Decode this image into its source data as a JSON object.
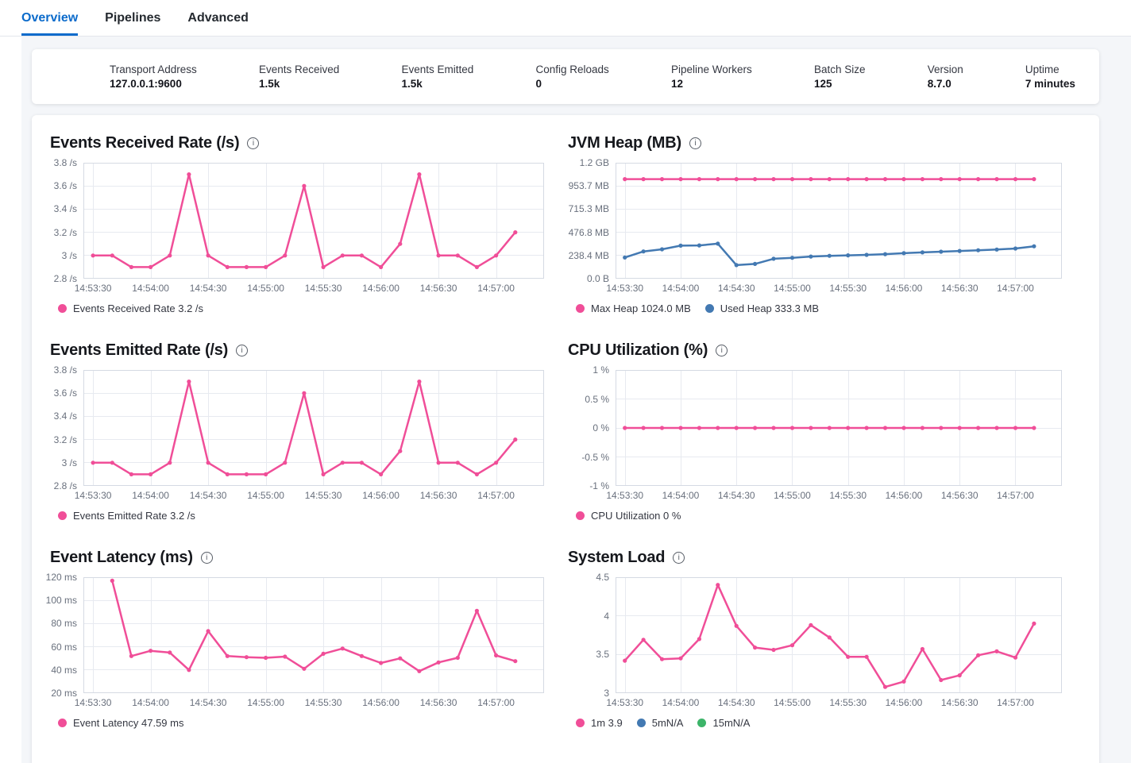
{
  "tabs": [
    {
      "label": "Overview",
      "active": true
    },
    {
      "label": "Pipelines",
      "active": false
    },
    {
      "label": "Advanced",
      "active": false
    }
  ],
  "stats": [
    {
      "label": "Transport Address",
      "value": "127.0.0.1:9600"
    },
    {
      "label": "Events Received",
      "value": "1.5k"
    },
    {
      "label": "Events Emitted",
      "value": "1.5k"
    },
    {
      "label": "Config Reloads",
      "value": "0"
    },
    {
      "label": "Pipeline Workers",
      "value": "12"
    },
    {
      "label": "Batch Size",
      "value": "125"
    },
    {
      "label": "Version",
      "value": "8.7.0"
    },
    {
      "label": "Uptime",
      "value": "7 minutes"
    }
  ],
  "colors": {
    "pink": "#f04e98",
    "blue": "#4379b2",
    "green": "#3cb469",
    "tab_accent": "#0b6bcb"
  },
  "icons": {
    "info": "i"
  },
  "chart_data": [
    {
      "type": "line",
      "title": "Events Received Rate (/s)",
      "ylim": [
        2.8,
        3.8
      ],
      "y_ticks": [
        "3.8 /s",
        "3.6 /s",
        "3.4 /s",
        "3.2 /s",
        "3 /s",
        "2.8 /s"
      ],
      "x_domain_seconds": 240,
      "x_ticks": [
        {
          "t": 5,
          "label": "14:53:30"
        },
        {
          "t": 35,
          "label": "14:54:00"
        },
        {
          "t": 65,
          "label": "14:54:30"
        },
        {
          "t": 95,
          "label": "14:55:00"
        },
        {
          "t": 125,
          "label": "14:55:30"
        },
        {
          "t": 155,
          "label": "14:56:00"
        },
        {
          "t": 185,
          "label": "14:56:30"
        },
        {
          "t": 215,
          "label": "14:57:00"
        }
      ],
      "series": [
        {
          "name": "Events Received Rate",
          "color": "pink",
          "start_t": 5,
          "step_t": 10,
          "values": [
            3,
            3,
            2.9,
            2.9,
            3,
            3.7,
            3,
            2.9,
            2.9,
            2.9,
            3,
            3.6,
            2.9,
            3,
            3,
            2.9,
            3.1,
            3.7,
            3,
            3,
            2.9,
            3,
            3.2
          ]
        }
      ],
      "legend": [
        {
          "label": "Events Received Rate 3.2 /s",
          "color": "pink"
        }
      ]
    },
    {
      "type": "line",
      "title": "JVM Heap (MB)",
      "ylim": [
        0,
        1192.1
      ],
      "y_ticks": [
        "1.2 GB",
        "953.7 MB",
        "715.3 MB",
        "476.8 MB",
        "238.4 MB",
        "0.0 B"
      ],
      "x_domain_seconds": 240,
      "x_ticks": [
        {
          "t": 5,
          "label": "14:53:30"
        },
        {
          "t": 35,
          "label": "14:54:00"
        },
        {
          "t": 65,
          "label": "14:54:30"
        },
        {
          "t": 95,
          "label": "14:55:00"
        },
        {
          "t": 125,
          "label": "14:55:30"
        },
        {
          "t": 155,
          "label": "14:56:00"
        },
        {
          "t": 185,
          "label": "14:56:30"
        },
        {
          "t": 215,
          "label": "14:57:00"
        }
      ],
      "series": [
        {
          "name": "Max Heap",
          "color": "pink",
          "start_t": 5,
          "step_t": 10,
          "values": [
            1024,
            1024,
            1024,
            1024,
            1024,
            1024,
            1024,
            1024,
            1024,
            1024,
            1024,
            1024,
            1024,
            1024,
            1024,
            1024,
            1024,
            1024,
            1024,
            1024,
            1024,
            1024,
            1024
          ]
        },
        {
          "name": "Used Heap",
          "color": "blue",
          "start_t": 5,
          "step_t": 10,
          "values": [
            218,
            280,
            302,
            340,
            342,
            360,
            140,
            152,
            205,
            215,
            228,
            235,
            240,
            245,
            252,
            262,
            270,
            278,
            285,
            292,
            300,
            310,
            333.3
          ]
        }
      ],
      "legend": [
        {
          "label": "Max Heap 1024.0 MB",
          "color": "pink"
        },
        {
          "label": "Used Heap 333.3 MB",
          "color": "blue"
        }
      ]
    },
    {
      "type": "line",
      "title": "Events Emitted Rate (/s)",
      "ylim": [
        2.8,
        3.8
      ],
      "y_ticks": [
        "3.8 /s",
        "3.6 /s",
        "3.4 /s",
        "3.2 /s",
        "3 /s",
        "2.8 /s"
      ],
      "x_domain_seconds": 240,
      "x_ticks": [
        {
          "t": 5,
          "label": "14:53:30"
        },
        {
          "t": 35,
          "label": "14:54:00"
        },
        {
          "t": 65,
          "label": "14:54:30"
        },
        {
          "t": 95,
          "label": "14:55:00"
        },
        {
          "t": 125,
          "label": "14:55:30"
        },
        {
          "t": 155,
          "label": "14:56:00"
        },
        {
          "t": 185,
          "label": "14:56:30"
        },
        {
          "t": 215,
          "label": "14:57:00"
        }
      ],
      "series": [
        {
          "name": "Events Emitted Rate",
          "color": "pink",
          "start_t": 5,
          "step_t": 10,
          "values": [
            3,
            3,
            2.9,
            2.9,
            3,
            3.7,
            3,
            2.9,
            2.9,
            2.9,
            3,
            3.6,
            2.9,
            3,
            3,
            2.9,
            3.1,
            3.7,
            3,
            3,
            2.9,
            3,
            3.2
          ]
        }
      ],
      "legend": [
        {
          "label": "Events Emitted Rate 3.2 /s",
          "color": "pink"
        }
      ]
    },
    {
      "type": "line",
      "title": "CPU Utilization (%)",
      "ylim": [
        -1,
        1
      ],
      "y_ticks": [
        "1 %",
        "0.5 %",
        "0 %",
        "-0.5 %",
        "-1 %"
      ],
      "x_domain_seconds": 240,
      "x_ticks": [
        {
          "t": 5,
          "label": "14:53:30"
        },
        {
          "t": 35,
          "label": "14:54:00"
        },
        {
          "t": 65,
          "label": "14:54:30"
        },
        {
          "t": 95,
          "label": "14:55:00"
        },
        {
          "t": 125,
          "label": "14:55:30"
        },
        {
          "t": 155,
          "label": "14:56:00"
        },
        {
          "t": 185,
          "label": "14:56:30"
        },
        {
          "t": 215,
          "label": "14:57:00"
        }
      ],
      "series": [
        {
          "name": "CPU Utilization",
          "color": "pink",
          "start_t": 5,
          "step_t": 10,
          "values": [
            0,
            0,
            0,
            0,
            0,
            0,
            0,
            0,
            0,
            0,
            0,
            0,
            0,
            0,
            0,
            0,
            0,
            0,
            0,
            0,
            0,
            0,
            0
          ]
        }
      ],
      "legend": [
        {
          "label": "CPU Utilization 0 %",
          "color": "pink"
        }
      ]
    },
    {
      "type": "line",
      "title": "Event Latency (ms)",
      "ylim": [
        20,
        120
      ],
      "y_ticks": [
        "120 ms",
        "100 ms",
        "80 ms",
        "60 ms",
        "40 ms",
        "20 ms"
      ],
      "x_domain_seconds": 240,
      "x_ticks": [
        {
          "t": 5,
          "label": "14:53:30"
        },
        {
          "t": 35,
          "label": "14:54:00"
        },
        {
          "t": 65,
          "label": "14:54:30"
        },
        {
          "t": 95,
          "label": "14:55:00"
        },
        {
          "t": 125,
          "label": "14:55:30"
        },
        {
          "t": 155,
          "label": "14:56:00"
        },
        {
          "t": 185,
          "label": "14:56:30"
        },
        {
          "t": 215,
          "label": "14:57:00"
        }
      ],
      "series": [
        {
          "name": "Event Latency",
          "color": "pink",
          "start_t": 15,
          "step_t": 10,
          "values": [
            117,
            52,
            56.5,
            55,
            40,
            73.5,
            52,
            51,
            50.5,
            51.5,
            41,
            54,
            58.5,
            52,
            46,
            50,
            39,
            46.5,
            50.5,
            91,
            52.5,
            47.59
          ]
        }
      ],
      "legend": [
        {
          "label": "Event Latency 47.59 ms",
          "color": "pink"
        }
      ]
    },
    {
      "type": "line",
      "title": "System Load",
      "ylim": [
        3,
        4.5
      ],
      "y_ticks": [
        "4.5",
        "4",
        "3.5",
        "3"
      ],
      "x_domain_seconds": 240,
      "x_ticks": [
        {
          "t": 5,
          "label": "14:53:30"
        },
        {
          "t": 35,
          "label": "14:54:00"
        },
        {
          "t": 65,
          "label": "14:54:30"
        },
        {
          "t": 95,
          "label": "14:55:00"
        },
        {
          "t": 125,
          "label": "14:55:30"
        },
        {
          "t": 155,
          "label": "14:56:00"
        },
        {
          "t": 185,
          "label": "14:56:30"
        },
        {
          "t": 215,
          "label": "14:57:00"
        }
      ],
      "series": [
        {
          "name": "1m",
          "color": "pink",
          "start_t": 5,
          "step_t": 10,
          "values": [
            3.42,
            3.69,
            3.44,
            3.45,
            3.7,
            4.4,
            3.87,
            3.59,
            3.56,
            3.62,
            3.88,
            3.72,
            3.47,
            3.47,
            3.08,
            3.15,
            3.57,
            3.17,
            3.23,
            3.49,
            3.54,
            3.46,
            3.9
          ]
        }
      ],
      "legend": [
        {
          "label": "1m 3.9",
          "color": "pink"
        },
        {
          "label": "5mN/A",
          "color": "blue"
        },
        {
          "label": "15mN/A",
          "color": "green"
        }
      ]
    }
  ]
}
